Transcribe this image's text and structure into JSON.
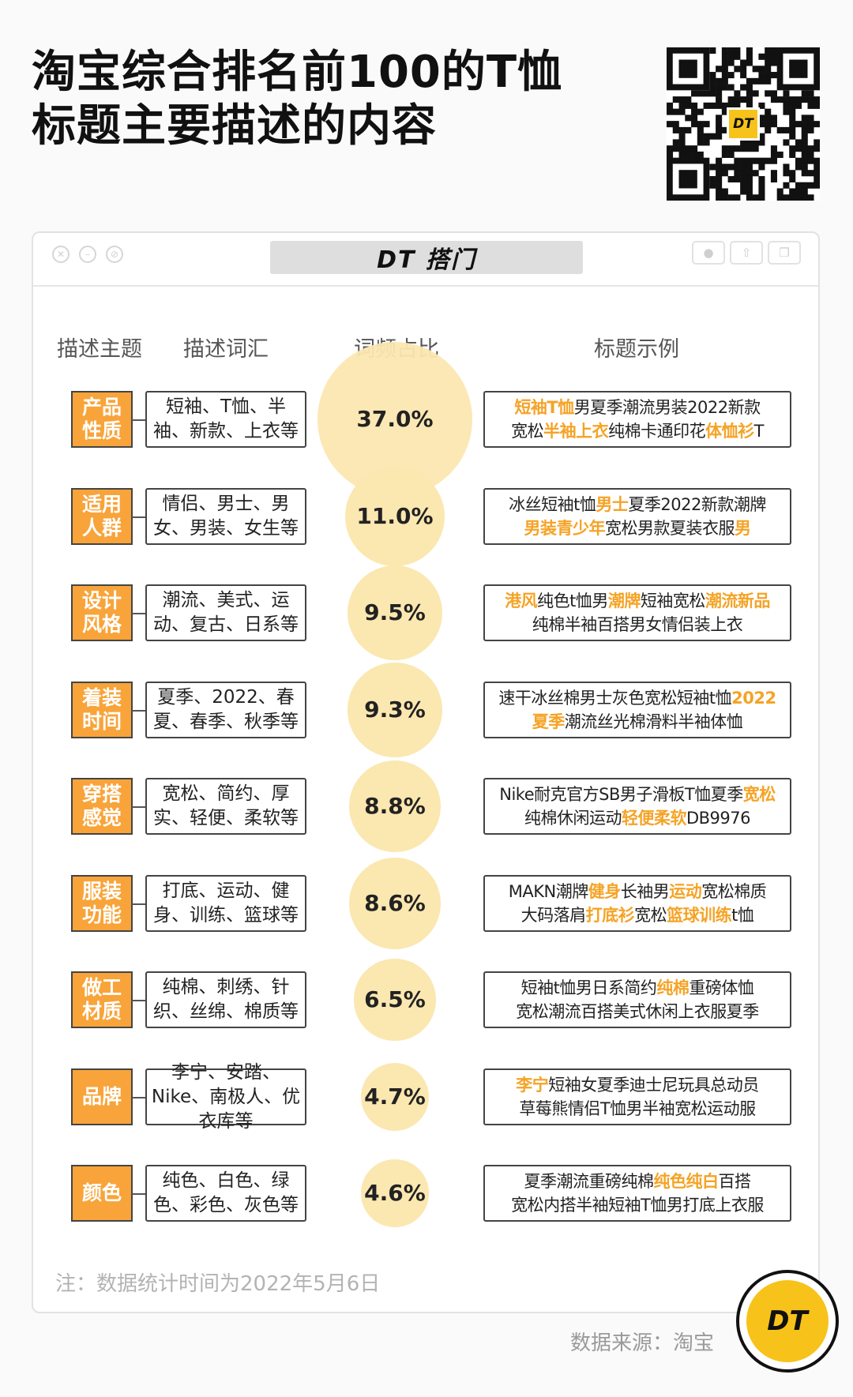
{
  "title": {
    "line1": "淘宝综合排名前100的T恤",
    "line2": "标题主要描述的内容"
  },
  "window": {
    "brand": "DT 搭门"
  },
  "columns": {
    "topic": "描述主题",
    "vocab": "描述词汇",
    "ratio": "词频占比",
    "example": "标题示例"
  },
  "colors": {
    "accent": "#f8a43a",
    "highlight": "#f5a326",
    "bubble": "#fbe7b0",
    "brand_yellow": "#f7c31a"
  },
  "chart_data": {
    "type": "bubble",
    "x_field": "描述主题",
    "y_field": "词频占比",
    "unit": "%",
    "rows": [
      {
        "topic": "产品\n性质",
        "vocab": "短袖、T恤、半袖、新款、上衣等",
        "value": 37.0,
        "label": "37.0%",
        "example": [
          [
            {
              "t": "短袖T恤",
              "h": true
            },
            {
              "t": "男夏季潮流男装2022新款",
              "h": false
            }
          ],
          [
            {
              "t": "宽松",
              "h": false
            },
            {
              "t": "半袖上衣",
              "h": true
            },
            {
              "t": "纯棉卡通印花",
              "h": false
            },
            {
              "t": "体恤衫",
              "h": true
            },
            {
              "t": "T",
              "h": false
            }
          ]
        ]
      },
      {
        "topic": "适用\n人群",
        "vocab": "情侣、男士、男女、男装、女生等",
        "value": 11.0,
        "label": "11.0%",
        "example": [
          [
            {
              "t": "冰丝短袖t恤",
              "h": false
            },
            {
              "t": "男士",
              "h": true
            },
            {
              "t": "夏季2022新款潮牌",
              "h": false
            }
          ],
          [
            {
              "t": "男装青少年",
              "h": true
            },
            {
              "t": "宽松男款夏装衣服",
              "h": false
            },
            {
              "t": "男",
              "h": true
            }
          ]
        ]
      },
      {
        "topic": "设计\n风格",
        "vocab": "潮流、美式、运动、复古、日系等",
        "value": 9.5,
        "label": "9.5%",
        "example": [
          [
            {
              "t": "港风",
              "h": true
            },
            {
              "t": "纯色t恤男",
              "h": false
            },
            {
              "t": "潮牌",
              "h": true
            },
            {
              "t": "短袖宽松",
              "h": false
            },
            {
              "t": "潮流新品",
              "h": true
            }
          ],
          [
            {
              "t": "纯棉半袖百搭男女情侣装上衣",
              "h": false
            }
          ]
        ]
      },
      {
        "topic": "着装\n时间",
        "vocab": "夏季、2022、春夏、春季、秋季等",
        "value": 9.3,
        "label": "9.3%",
        "example": [
          [
            {
              "t": "速干冰丝棉男士灰色宽松短袖t恤",
              "h": false
            },
            {
              "t": "2022",
              "h": true
            }
          ],
          [
            {
              "t": "夏季",
              "h": true
            },
            {
              "t": "潮流丝光棉滑料半袖体恤",
              "h": false
            }
          ]
        ]
      },
      {
        "topic": "穿搭\n感觉",
        "vocab": "宽松、简约、厚实、轻便、柔软等",
        "value": 8.8,
        "label": "8.8%",
        "example": [
          [
            {
              "t": "Nike耐克官方SB男子滑板T恤夏季",
              "h": false
            },
            {
              "t": "宽松",
              "h": true
            }
          ],
          [
            {
              "t": "纯棉休闲运动",
              "h": false
            },
            {
              "t": "轻便柔软",
              "h": true
            },
            {
              "t": "DB9976",
              "h": false
            }
          ]
        ]
      },
      {
        "topic": "服装\n功能",
        "vocab": "打底、运动、健身、训练、篮球等",
        "value": 8.6,
        "label": "8.6%",
        "example": [
          [
            {
              "t": "MAKN潮牌",
              "h": false
            },
            {
              "t": "健身",
              "h": true
            },
            {
              "t": "长袖男",
              "h": false
            },
            {
              "t": "运动",
              "h": true
            },
            {
              "t": "宽松棉质",
              "h": false
            }
          ],
          [
            {
              "t": "大码落肩",
              "h": false
            },
            {
              "t": "打底衫",
              "h": true
            },
            {
              "t": "宽松",
              "h": false
            },
            {
              "t": "篮球训练",
              "h": true
            },
            {
              "t": "t恤",
              "h": false
            }
          ]
        ]
      },
      {
        "topic": "做工\n材质",
        "vocab": "纯棉、刺绣、针织、丝绵、棉质等",
        "value": 6.5,
        "label": "6.5%",
        "example": [
          [
            {
              "t": "短袖t恤男日系简约",
              "h": false
            },
            {
              "t": "纯棉",
              "h": true
            },
            {
              "t": "重磅体恤",
              "h": false
            }
          ],
          [
            {
              "t": "宽松潮流百搭美式休闲上衣服夏季",
              "h": false
            }
          ]
        ]
      },
      {
        "topic": "品牌",
        "vocab": "李宁、安踏、Nike、南极人、优衣库等",
        "value": 4.7,
        "label": "4.7%",
        "example": [
          [
            {
              "t": "李宁",
              "h": true
            },
            {
              "t": "短袖女夏季迪士尼玩具总动员",
              "h": false
            }
          ],
          [
            {
              "t": "草莓熊情侣T恤男半袖宽松运动服",
              "h": false
            }
          ]
        ]
      },
      {
        "topic": "颜色",
        "vocab": "纯色、白色、绿色、彩色、灰色等",
        "value": 4.6,
        "label": "4.6%",
        "example": [
          [
            {
              "t": "夏季潮流重磅纯棉",
              "h": false
            },
            {
              "t": "纯色纯白",
              "h": true
            },
            {
              "t": "百搭",
              "h": false
            }
          ],
          [
            {
              "t": "宽松内搭半袖短袖T恤男打底上衣服",
              "h": false
            }
          ]
        ]
      }
    ]
  },
  "footer": {
    "note": "注：数据统计时间为2022年5月6日",
    "source": "数据来源：淘宝",
    "badge": "DT"
  },
  "qr": {
    "logo": "DT"
  }
}
